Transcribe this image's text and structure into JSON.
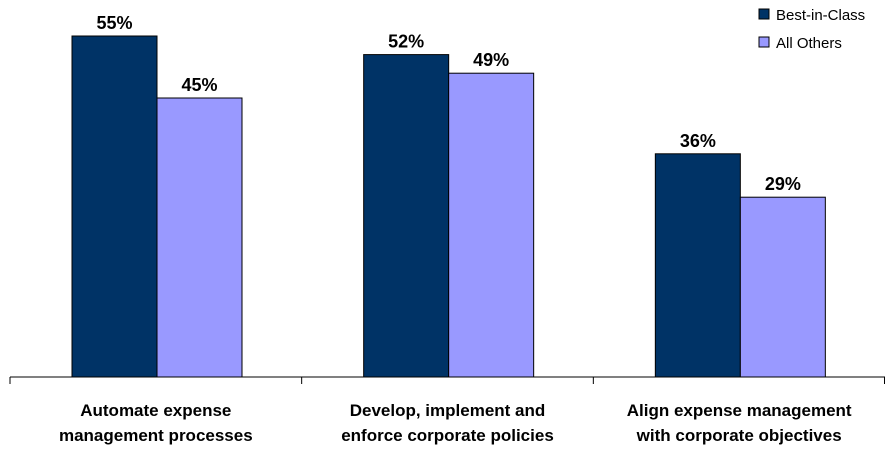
{
  "chart_data": {
    "type": "bar",
    "categories": [
      [
        "Automate expense",
        "management processes"
      ],
      [
        "Develop, implement and",
        "enforce corporate policies"
      ],
      [
        "Align expense management",
        "with corporate objectives"
      ]
    ],
    "series": [
      {
        "name": "Best-in-Class",
        "values": [
          55,
          52,
          36
        ],
        "labels": [
          "55%",
          "52%",
          "36%"
        ],
        "color": "#003366"
      },
      {
        "name": "All Others",
        "values": [
          45,
          49,
          29
        ],
        "labels": [
          "45%",
          "49%",
          "29%"
        ],
        "color": "#9999ff"
      }
    ],
    "ylim": [
      0,
      60
    ],
    "grid": false,
    "legend_position": "top-right"
  }
}
